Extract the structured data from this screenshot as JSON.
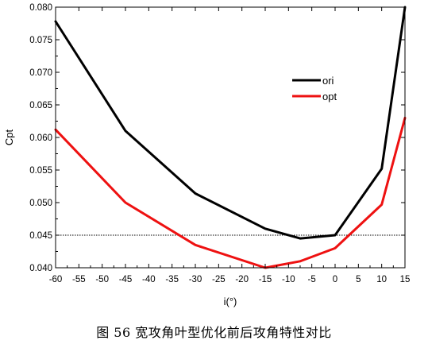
{
  "caption": "图 56  宽攻角叶型优化前后攻角特性对比",
  "chart_data": {
    "type": "line",
    "xlabel": "i(°)",
    "ylabel": "Cpt",
    "xlim": [
      -60,
      15
    ],
    "ylim": [
      0.04,
      0.08
    ],
    "x_ticks": [
      -60,
      -55,
      -50,
      -45,
      -40,
      -35,
      -30,
      -25,
      -20,
      -15,
      -10,
      -5,
      0,
      5,
      10,
      15
    ],
    "x_tick_labels": [
      "-60",
      "-55",
      "-50",
      "-45",
      "-40",
      "-35",
      "-30",
      "-25",
      "-20",
      "-15",
      "-10",
      "-5",
      "0",
      "5",
      "10",
      "15"
    ],
    "y_ticks": [
      0.04,
      0.045,
      0.05,
      0.055,
      0.06,
      0.065,
      0.07,
      0.075,
      0.08
    ],
    "y_tick_labels": [
      "0.040",
      "0.045",
      "0.050",
      "0.055",
      "0.060",
      "0.065",
      "0.070",
      "0.075",
      "0.080"
    ],
    "reference_line": {
      "y": 0.045,
      "style": "dotted"
    },
    "legend_position": "upper-right-inside",
    "grid": false,
    "series": [
      {
        "name": "ori",
        "color": "#000000",
        "x": [
          -60,
          -45,
          -30,
          -15,
          -7.5,
          0,
          10,
          15
        ],
        "y": [
          0.0778,
          0.061,
          0.0514,
          0.046,
          0.0445,
          0.045,
          0.0552,
          0.08
        ]
      },
      {
        "name": "opt",
        "color": "#ee1111",
        "x": [
          -60,
          -45,
          -30,
          -15,
          -7.5,
          0,
          10,
          15
        ],
        "y": [
          0.0612,
          0.05,
          0.0435,
          0.04,
          0.041,
          0.043,
          0.0497,
          0.063
        ]
      }
    ]
  }
}
